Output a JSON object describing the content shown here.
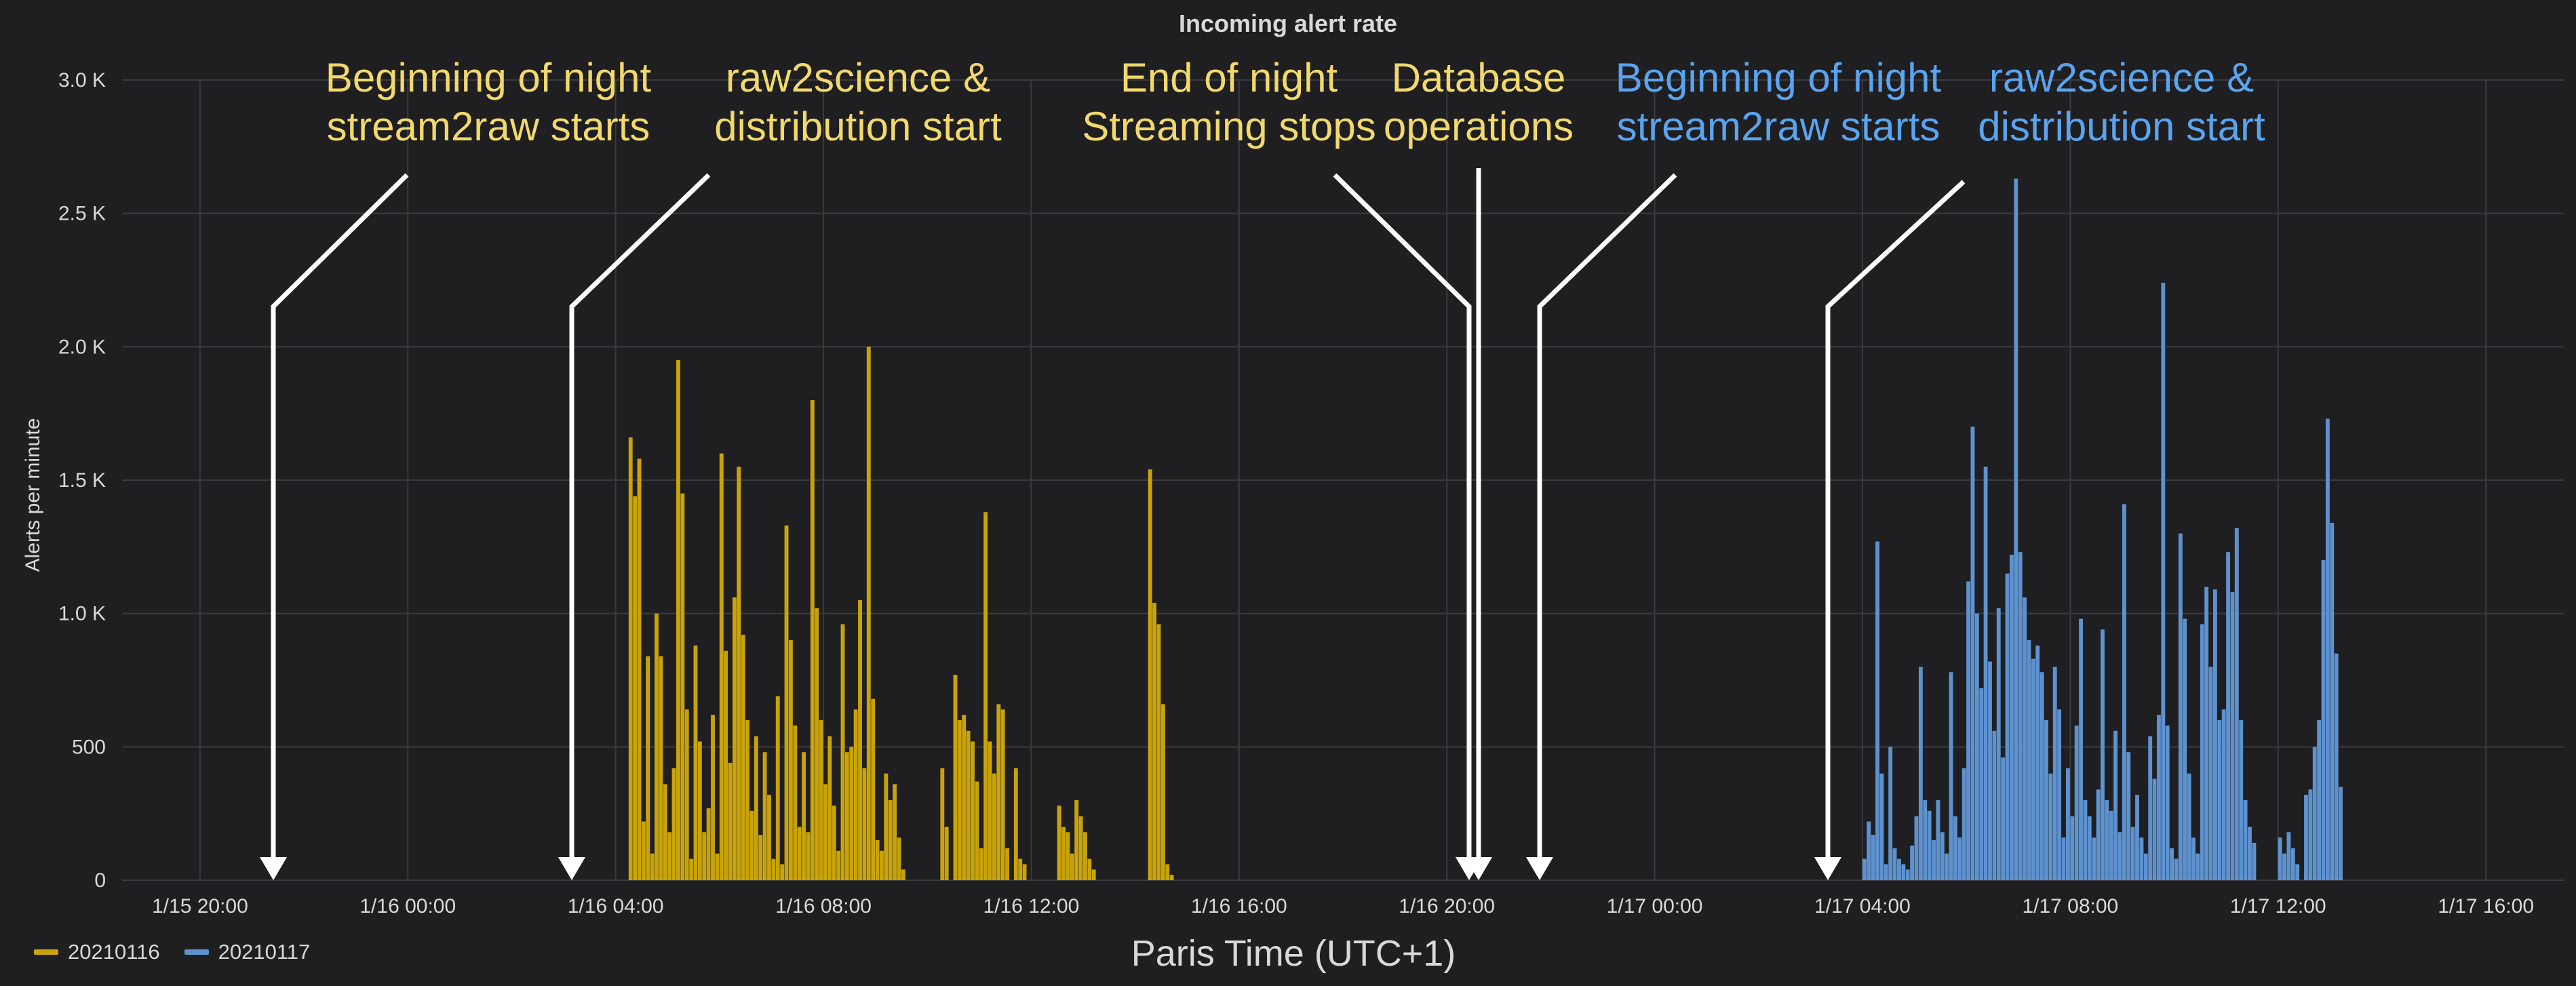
{
  "chart_data": {
    "type": "bar",
    "title": "Incoming alert rate",
    "xlabel": "Paris Time (UTC+1)",
    "ylabel": "Alerts per minute",
    "ylim": [
      0,
      3000
    ],
    "xlim": [
      "2021-01-15 18:30",
      "2021-01-17 17:30"
    ],
    "y_ticks": [
      {
        "v": 0,
        "label": "0"
      },
      {
        "v": 500,
        "label": "500"
      },
      {
        "v": 1000,
        "label": "1.0 K"
      },
      {
        "v": 1500,
        "label": "1.5 K"
      },
      {
        "v": 2000,
        "label": "2.0 K"
      },
      {
        "v": 2500,
        "label": "2.5 K"
      },
      {
        "v": 3000,
        "label": "3.0 K"
      }
    ],
    "x_ticks": [
      {
        "t": "2021-01-15 20:00",
        "label": "1/15 20:00"
      },
      {
        "t": "2021-01-16 00:00",
        "label": "1/16 00:00"
      },
      {
        "t": "2021-01-16 04:00",
        "label": "1/16 04:00"
      },
      {
        "t": "2021-01-16 08:00",
        "label": "1/16 08:00"
      },
      {
        "t": "2021-01-16 12:00",
        "label": "1/16 12:00"
      },
      {
        "t": "2021-01-16 16:00",
        "label": "1/16 16:00"
      },
      {
        "t": "2021-01-16 20:00",
        "label": "1/16 20:00"
      },
      {
        "t": "2021-01-17 00:00",
        "label": "1/17 00:00"
      },
      {
        "t": "2021-01-17 04:00",
        "label": "1/17 04:00"
      },
      {
        "t": "2021-01-17 08:00",
        "label": "1/17 08:00"
      },
      {
        "t": "2021-01-17 12:00",
        "label": "1/17 12:00"
      },
      {
        "t": "2021-01-17 16:00",
        "label": "1/17 16:00"
      }
    ],
    "grid": true,
    "legend_position": "bottom-left",
    "series": [
      {
        "name": "20210116",
        "color": "#c9a30a",
        "points": [
          [
            "2021-01-16 04:15",
            1660
          ],
          [
            "2021-01-16 04:20",
            1440
          ],
          [
            "2021-01-16 04:25",
            1580
          ],
          [
            "2021-01-16 04:30",
            220
          ],
          [
            "2021-01-16 04:35",
            840
          ],
          [
            "2021-01-16 04:40",
            100
          ],
          [
            "2021-01-16 04:45",
            1000
          ],
          [
            "2021-01-16 04:50",
            840
          ],
          [
            "2021-01-16 04:55",
            360
          ],
          [
            "2021-01-16 05:00",
            180
          ],
          [
            "2021-01-16 05:05",
            420
          ],
          [
            "2021-01-16 05:10",
            1950
          ],
          [
            "2021-01-16 05:15",
            1450
          ],
          [
            "2021-01-16 05:20",
            640
          ],
          [
            "2021-01-16 05:25",
            80
          ],
          [
            "2021-01-16 05:30",
            880
          ],
          [
            "2021-01-16 05:35",
            520
          ],
          [
            "2021-01-16 05:40",
            180
          ],
          [
            "2021-01-16 05:45",
            270
          ],
          [
            "2021-01-16 05:50",
            620
          ],
          [
            "2021-01-16 05:55",
            100
          ],
          [
            "2021-01-16 06:00",
            1600
          ],
          [
            "2021-01-16 06:05",
            860
          ],
          [
            "2021-01-16 06:10",
            440
          ],
          [
            "2021-01-16 06:15",
            1060
          ],
          [
            "2021-01-16 06:20",
            1550
          ],
          [
            "2021-01-16 06:25",
            920
          ],
          [
            "2021-01-16 06:30",
            600
          ],
          [
            "2021-01-16 06:35",
            260
          ],
          [
            "2021-01-16 06:40",
            540
          ],
          [
            "2021-01-16 06:45",
            170
          ],
          [
            "2021-01-16 06:50",
            480
          ],
          [
            "2021-01-16 06:55",
            320
          ],
          [
            "2021-01-16 07:00",
            80
          ],
          [
            "2021-01-16 07:05",
            690
          ],
          [
            "2021-01-16 07:10",
            60
          ],
          [
            "2021-01-16 07:15",
            1330
          ],
          [
            "2021-01-16 07:20",
            900
          ],
          [
            "2021-01-16 07:25",
            580
          ],
          [
            "2021-01-16 07:30",
            200
          ],
          [
            "2021-01-16 07:35",
            480
          ],
          [
            "2021-01-16 07:40",
            180
          ],
          [
            "2021-01-16 07:45",
            1800
          ],
          [
            "2021-01-16 07:50",
            1020
          ],
          [
            "2021-01-16 07:55",
            600
          ],
          [
            "2021-01-16 08:00",
            360
          ],
          [
            "2021-01-16 08:05",
            540
          ],
          [
            "2021-01-16 08:10",
            280
          ],
          [
            "2021-01-16 08:15",
            110
          ],
          [
            "2021-01-16 08:20",
            960
          ],
          [
            "2021-01-16 08:25",
            480
          ],
          [
            "2021-01-16 08:30",
            500
          ],
          [
            "2021-01-16 08:35",
            640
          ],
          [
            "2021-01-16 08:40",
            1050
          ],
          [
            "2021-01-16 08:45",
            420
          ],
          [
            "2021-01-16 08:50",
            2000
          ],
          [
            "2021-01-16 08:55",
            680
          ],
          [
            "2021-01-16 09:00",
            150
          ],
          [
            "2021-01-16 09:05",
            110
          ],
          [
            "2021-01-16 09:10",
            400
          ],
          [
            "2021-01-16 09:15",
            300
          ],
          [
            "2021-01-16 09:20",
            360
          ],
          [
            "2021-01-16 09:25",
            160
          ],
          [
            "2021-01-16 09:30",
            40
          ],
          [
            "2021-01-16 10:15",
            420
          ],
          [
            "2021-01-16 10:20",
            200
          ],
          [
            "2021-01-16 10:30",
            770
          ],
          [
            "2021-01-16 10:35",
            600
          ],
          [
            "2021-01-16 10:40",
            620
          ],
          [
            "2021-01-16 10:45",
            560
          ],
          [
            "2021-01-16 10:50",
            520
          ],
          [
            "2021-01-16 10:55",
            370
          ],
          [
            "2021-01-16 11:00",
            120
          ],
          [
            "2021-01-16 11:05",
            1380
          ],
          [
            "2021-01-16 11:10",
            520
          ],
          [
            "2021-01-16 11:15",
            400
          ],
          [
            "2021-01-16 11:20",
            660
          ],
          [
            "2021-01-16 11:25",
            640
          ],
          [
            "2021-01-16 11:30",
            120
          ],
          [
            "2021-01-16 11:40",
            420
          ],
          [
            "2021-01-16 11:45",
            80
          ],
          [
            "2021-01-16 11:50",
            60
          ],
          [
            "2021-01-16 12:30",
            280
          ],
          [
            "2021-01-16 12:35",
            200
          ],
          [
            "2021-01-16 12:40",
            180
          ],
          [
            "2021-01-16 12:45",
            100
          ],
          [
            "2021-01-16 12:50",
            300
          ],
          [
            "2021-01-16 12:55",
            240
          ],
          [
            "2021-01-16 13:00",
            180
          ],
          [
            "2021-01-16 13:05",
            80
          ],
          [
            "2021-01-16 13:10",
            40
          ],
          [
            "2021-01-16 14:15",
            1540
          ],
          [
            "2021-01-16 14:20",
            1040
          ],
          [
            "2021-01-16 14:25",
            960
          ],
          [
            "2021-01-16 14:30",
            660
          ],
          [
            "2021-01-16 14:35",
            60
          ],
          [
            "2021-01-16 14:40",
            20
          ]
        ]
      },
      {
        "name": "20210117",
        "color": "#5e92cf",
        "points": [
          [
            "2021-01-17 04:00",
            80
          ],
          [
            "2021-01-17 04:05",
            220
          ],
          [
            "2021-01-17 04:10",
            170
          ],
          [
            "2021-01-17 04:15",
            1270
          ],
          [
            "2021-01-17 04:20",
            400
          ],
          [
            "2021-01-17 04:25",
            60
          ],
          [
            "2021-01-17 04:30",
            500
          ],
          [
            "2021-01-17 04:35",
            120
          ],
          [
            "2021-01-17 04:40",
            80
          ],
          [
            "2021-01-17 04:45",
            60
          ],
          [
            "2021-01-17 04:50",
            40
          ],
          [
            "2021-01-17 04:55",
            130
          ],
          [
            "2021-01-17 05:00",
            240
          ],
          [
            "2021-01-17 05:05",
            800
          ],
          [
            "2021-01-17 05:10",
            300
          ],
          [
            "2021-01-17 05:15",
            260
          ],
          [
            "2021-01-17 05:20",
            150
          ],
          [
            "2021-01-17 05:25",
            300
          ],
          [
            "2021-01-17 05:30",
            180
          ],
          [
            "2021-01-17 05:35",
            100
          ],
          [
            "2021-01-17 05:40",
            780
          ],
          [
            "2021-01-17 05:45",
            240
          ],
          [
            "2021-01-17 05:50",
            160
          ],
          [
            "2021-01-17 05:55",
            420
          ],
          [
            "2021-01-17 06:00",
            1120
          ],
          [
            "2021-01-17 06:05",
            1700
          ],
          [
            "2021-01-17 06:10",
            1000
          ],
          [
            "2021-01-17 06:15",
            720
          ],
          [
            "2021-01-17 06:20",
            1550
          ],
          [
            "2021-01-17 06:25",
            820
          ],
          [
            "2021-01-17 06:30",
            560
          ],
          [
            "2021-01-17 06:35",
            1020
          ],
          [
            "2021-01-17 06:40",
            460
          ],
          [
            "2021-01-17 06:45",
            1150
          ],
          [
            "2021-01-17 06:50",
            1220
          ],
          [
            "2021-01-17 06:55",
            2630
          ],
          [
            "2021-01-17 07:00",
            1230
          ],
          [
            "2021-01-17 07:05",
            1060
          ],
          [
            "2021-01-17 07:10",
            900
          ],
          [
            "2021-01-17 07:15",
            830
          ],
          [
            "2021-01-17 07:20",
            880
          ],
          [
            "2021-01-17 07:25",
            780
          ],
          [
            "2021-01-17 07:30",
            600
          ],
          [
            "2021-01-17 07:35",
            400
          ],
          [
            "2021-01-17 07:40",
            800
          ],
          [
            "2021-01-17 07:45",
            640
          ],
          [
            "2021-01-17 07:50",
            160
          ],
          [
            "2021-01-17 07:55",
            420
          ],
          [
            "2021-01-17 08:00",
            240
          ],
          [
            "2021-01-17 08:05",
            580
          ],
          [
            "2021-01-17 08:10",
            980
          ],
          [
            "2021-01-17 08:15",
            300
          ],
          [
            "2021-01-17 08:20",
            240
          ],
          [
            "2021-01-17 08:25",
            160
          ],
          [
            "2021-01-17 08:30",
            340
          ],
          [
            "2021-01-17 08:35",
            940
          ],
          [
            "2021-01-17 08:40",
            300
          ],
          [
            "2021-01-17 08:45",
            260
          ],
          [
            "2021-01-17 08:50",
            560
          ],
          [
            "2021-01-17 08:55",
            180
          ],
          [
            "2021-01-17 09:00",
            1410
          ],
          [
            "2021-01-17 09:05",
            480
          ],
          [
            "2021-01-17 09:10",
            200
          ],
          [
            "2021-01-17 09:15",
            320
          ],
          [
            "2021-01-17 09:20",
            160
          ],
          [
            "2021-01-17 09:25",
            100
          ],
          [
            "2021-01-17 09:30",
            540
          ],
          [
            "2021-01-17 09:35",
            380
          ],
          [
            "2021-01-17 09:40",
            620
          ],
          [
            "2021-01-17 09:45",
            2240
          ],
          [
            "2021-01-17 09:50",
            580
          ],
          [
            "2021-01-17 09:55",
            120
          ],
          [
            "2021-01-17 10:00",
            80
          ],
          [
            "2021-01-17 10:05",
            1300
          ],
          [
            "2021-01-17 10:10",
            980
          ],
          [
            "2021-01-17 10:15",
            400
          ],
          [
            "2021-01-17 10:20",
            160
          ],
          [
            "2021-01-17 10:25",
            100
          ],
          [
            "2021-01-17 10:30",
            960
          ],
          [
            "2021-01-17 10:35",
            1100
          ],
          [
            "2021-01-17 10:40",
            800
          ],
          [
            "2021-01-17 10:45",
            1090
          ],
          [
            "2021-01-17 10:50",
            600
          ],
          [
            "2021-01-17 10:55",
            640
          ],
          [
            "2021-01-17 11:00",
            1230
          ],
          [
            "2021-01-17 11:05",
            1080
          ],
          [
            "2021-01-17 11:10",
            1320
          ],
          [
            "2021-01-17 11:15",
            600
          ],
          [
            "2021-01-17 11:20",
            300
          ],
          [
            "2021-01-17 11:25",
            200
          ],
          [
            "2021-01-17 11:30",
            140
          ],
          [
            "2021-01-17 12:00",
            160
          ],
          [
            "2021-01-17 12:05",
            100
          ],
          [
            "2021-01-17 12:10",
            180
          ],
          [
            "2021-01-17 12:15",
            120
          ],
          [
            "2021-01-17 12:20",
            60
          ],
          [
            "2021-01-17 12:30",
            320
          ],
          [
            "2021-01-17 12:35",
            340
          ],
          [
            "2021-01-17 12:40",
            500
          ],
          [
            "2021-01-17 12:45",
            600
          ],
          [
            "2021-01-17 12:50",
            1200
          ],
          [
            "2021-01-17 12:55",
            1730
          ],
          [
            "2021-01-17 13:00",
            1340
          ],
          [
            "2021-01-17 13:05",
            850
          ],
          [
            "2021-01-17 13:10",
            350
          ]
        ]
      }
    ],
    "annotations": [
      {
        "t": "2021-01-15 22:00",
        "color": "#f2d96d",
        "lines": [
          "Beginning of night",
          "stream2raw starts"
        ]
      },
      {
        "t": "2021-01-16 03:45",
        "color": "#f2d96d",
        "lines": [
          "raw2science &",
          "distribution start"
        ]
      },
      {
        "t": "2021-01-16 21:20",
        "color": "#f2d96d",
        "lines": [
          "End of night",
          "Streaming stops"
        ]
      },
      {
        "t": "2021-01-16 21:40",
        "color": "#f2d96d",
        "lines": [
          "Database",
          "operations"
        ]
      },
      {
        "t": "2021-01-16 22:50",
        "color": "#5aa4f0",
        "lines": [
          "Beginning of night",
          "stream2raw starts"
        ]
      },
      {
        "t": "2021-01-17 04:00",
        "color": "#5aa4f0",
        "lines": [
          "raw2science &",
          "distribution start"
        ]
      }
    ]
  }
}
